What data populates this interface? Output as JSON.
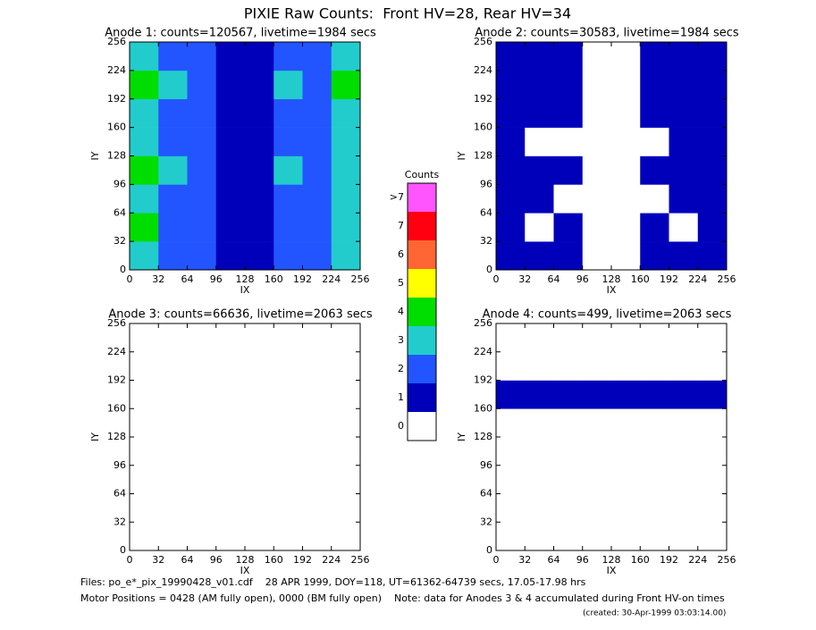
{
  "title": "PIXIE Raw Counts:  Front HV=28, Rear HV=34",
  "chart_data": [
    {
      "type": "heatmap",
      "title": "Anode 1: counts=120567, livetime=1984 secs",
      "x_label": "IX",
      "y_label": "IY",
      "xlim": [
        0,
        256
      ],
      "ylim": [
        0,
        256
      ],
      "xticks": [
        0,
        32,
        64,
        96,
        128,
        160,
        192,
        224,
        256
      ],
      "yticks": [
        0,
        32,
        64,
        96,
        128,
        160,
        192,
        224,
        256
      ],
      "z": [
        [
          3,
          2,
          2,
          1,
          1,
          2,
          2,
          3
        ],
        [
          4,
          2,
          2,
          1,
          1,
          2,
          2,
          3
        ],
        [
          3,
          2,
          2,
          1,
          1,
          2,
          2,
          3
        ],
        [
          4,
          3,
          2,
          1,
          1,
          3,
          2,
          3
        ],
        [
          3,
          2,
          2,
          1,
          1,
          2,
          2,
          3
        ],
        [
          3,
          2,
          2,
          1,
          1,
          2,
          2,
          3
        ],
        [
          4,
          3,
          2,
          1,
          1,
          3,
          2,
          4
        ],
        [
          3,
          2,
          2,
          1,
          1,
          2,
          2,
          3
        ]
      ]
    },
    {
      "type": "heatmap",
      "title": "Anode 2: counts=30583, livetime=1984 secs",
      "x_label": "IX",
      "y_label": "IY",
      "xlim": [
        0,
        256
      ],
      "ylim": [
        0,
        256
      ],
      "xticks": [
        0,
        32,
        64,
        96,
        128,
        160,
        192,
        224,
        256
      ],
      "yticks": [
        0,
        32,
        64,
        96,
        128,
        160,
        192,
        224,
        256
      ],
      "z": [
        [
          1,
          1,
          1,
          0,
          0,
          1,
          1,
          1
        ],
        [
          1,
          0,
          1,
          0,
          0,
          1,
          0,
          1
        ],
        [
          1,
          1,
          0,
          0,
          0,
          0,
          1,
          1
        ],
        [
          1,
          1,
          1,
          0,
          0,
          1,
          1,
          1
        ],
        [
          1,
          0,
          0,
          0,
          0,
          0,
          1,
          1
        ],
        [
          1,
          1,
          1,
          0,
          0,
          1,
          1,
          1
        ],
        [
          1,
          1,
          1,
          0,
          0,
          1,
          1,
          1
        ],
        [
          1,
          1,
          1,
          0,
          0,
          1,
          1,
          1
        ]
      ]
    },
    {
      "type": "heatmap",
      "title": "Anode 3: counts=66636, livetime=2063 secs",
      "x_label": "IX",
      "y_label": "IY",
      "xlim": [
        0,
        256
      ],
      "ylim": [
        0,
        256
      ],
      "xticks": [
        0,
        32,
        64,
        96,
        128,
        160,
        192,
        224,
        256
      ],
      "yticks": [
        0,
        32,
        64,
        96,
        128,
        160,
        192,
        224,
        256
      ],
      "z": [
        [
          0,
          0,
          0,
          0,
          0,
          0,
          0,
          0
        ],
        [
          0,
          0,
          0,
          0,
          0,
          0,
          0,
          0
        ],
        [
          0,
          0,
          0,
          0,
          0,
          0,
          0,
          0
        ],
        [
          0,
          0,
          0,
          0,
          0,
          0,
          0,
          0
        ],
        [
          0,
          0,
          0,
          0,
          0,
          0,
          0,
          0
        ],
        [
          0,
          0,
          0,
          0,
          0,
          0,
          0,
          0
        ],
        [
          0,
          0,
          0,
          0,
          0,
          0,
          0,
          0
        ],
        [
          0,
          0,
          0,
          0,
          0,
          0,
          0,
          0
        ]
      ]
    },
    {
      "type": "heatmap",
      "title": "Anode 4: counts=499, livetime=2063 secs",
      "x_label": "IX",
      "y_label": "IY",
      "xlim": [
        0,
        256
      ],
      "ylim": [
        0,
        256
      ],
      "xticks": [
        0,
        32,
        64,
        96,
        128,
        160,
        192,
        224,
        256
      ],
      "yticks": [
        0,
        32,
        64,
        96,
        128,
        160,
        192,
        224,
        256
      ],
      "z": [
        [
          0,
          0,
          0,
          0,
          0,
          0,
          0,
          0
        ],
        [
          0,
          0,
          0,
          0,
          0,
          0,
          0,
          0
        ],
        [
          0,
          0,
          0,
          0,
          0,
          0,
          0,
          0
        ],
        [
          0,
          0,
          0,
          0,
          0,
          0,
          0,
          0
        ],
        [
          0,
          0,
          0,
          0,
          0,
          0,
          0,
          0
        ],
        [
          1,
          1,
          1,
          1,
          1,
          1,
          1,
          1
        ],
        [
          0,
          0,
          0,
          0,
          0,
          0,
          0,
          0
        ],
        [
          0,
          0,
          0,
          0,
          0,
          0,
          0,
          0
        ]
      ]
    }
  ],
  "colorbar": {
    "title": "Counts",
    "labels": [
      "0",
      "1",
      "2",
      "3",
      "4",
      "5",
      "6",
      "7",
      ">7"
    ],
    "colors": [
      "#ffffff",
      "#0000bb",
      "#2255ff",
      "#22cccc",
      "#00dd00",
      "#ffff00",
      "#ff6633",
      "#ff0011",
      "#ff55ff"
    ]
  },
  "footer": {
    "files": "Files: po_e*_pix_19990428_v01.cdf    28 APR 1999, DOY=118, UT=61362-64739 secs, 17.05-17.98 hrs",
    "motor": "Motor Positions = 0428 (AM fully open), 0000 (BM fully open)    Note: data for Anodes 3 & 4 accumulated during Front HV-on times",
    "created": "(created: 30-Apr-1999 03:03:14.00)"
  }
}
